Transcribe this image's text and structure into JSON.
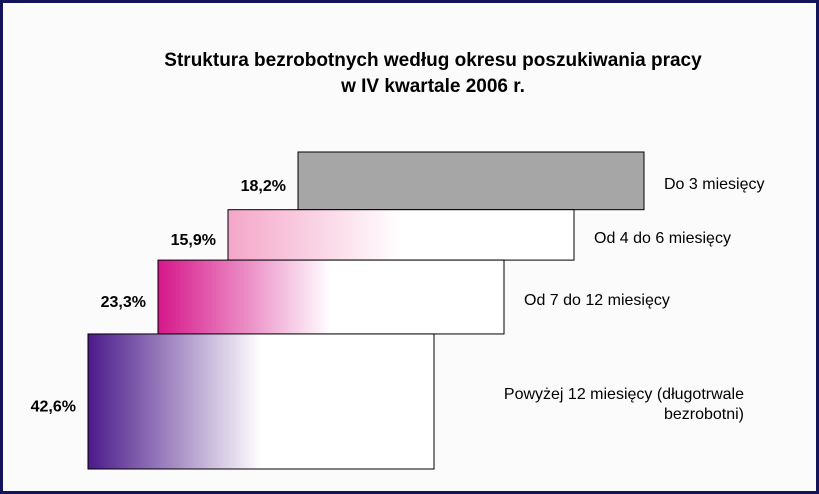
{
  "chart_data": {
    "type": "bar",
    "title": [
      "Struktura bezrobotnych według okresu poszukiwania pracy",
      "w IV kwartale 2006 r."
    ],
    "categories": [
      "Do 3 miesięcy",
      "Od 4 do 6 miesięcy",
      "Od 7 do 12 miesięcy",
      "Powyżej 12 miesięcy (długotrwale bezrobotni)"
    ],
    "values": [
      18.2,
      15.9,
      23.3,
      42.6
    ],
    "value_labels": [
      "18,2%",
      "15,9%",
      "23,3%",
      "42,6%"
    ],
    "colors": [
      "#a6a6a6",
      "#f4a6c8",
      "#d6168a",
      "#4b1a8a"
    ]
  }
}
